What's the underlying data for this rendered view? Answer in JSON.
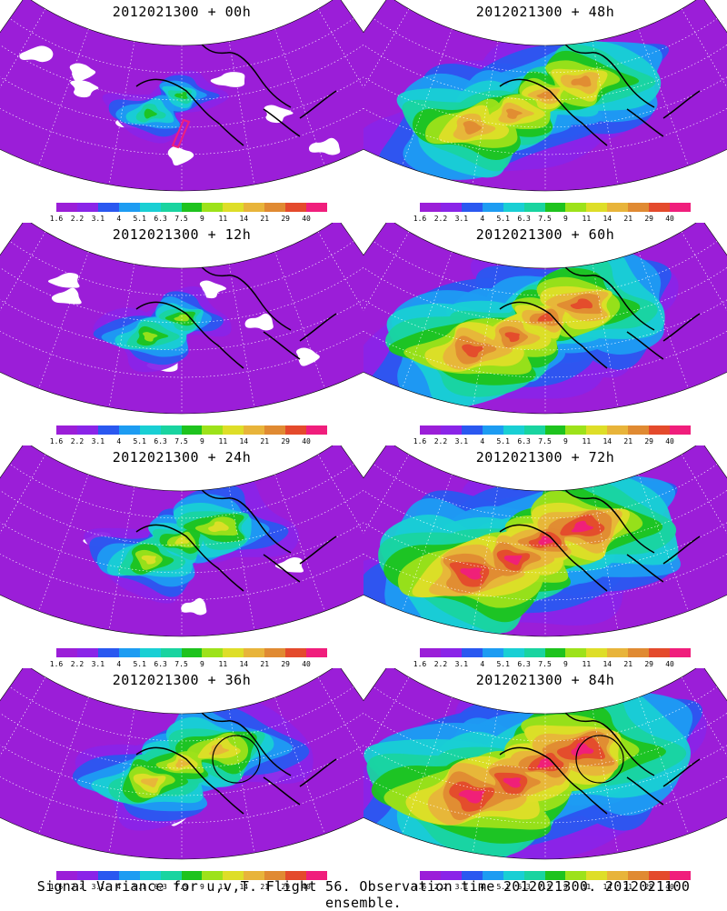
{
  "caption": "Signal Variance for u,v,T. Flight 56. Observation time 2012021300. 2012021100 ensemble.",
  "colorbar": {
    "colors": [
      "#9b1ed8",
      "#8a24e8",
      "#2a58f0",
      "#1d9cf2",
      "#19cfd4",
      "#19d4a0",
      "#1ec31e",
      "#9de21a",
      "#dede28",
      "#e8b43a",
      "#e08a32",
      "#e44a2c",
      "#f01e7c"
    ],
    "labels": [
      "1.6",
      "2.2",
      "3.1",
      "4",
      "5.1",
      "6.3",
      "7.5",
      "9",
      "11",
      "14",
      "21",
      "29",
      "40"
    ]
  },
  "panels": [
    {
      "title": "2012021300 + 00h",
      "level": 0,
      "circle": false,
      "track": true
    },
    {
      "title": "2012021300 + 48h",
      "level": 4,
      "circle": false,
      "track": false
    },
    {
      "title": "2012021300 + 12h",
      "level": 1,
      "circle": false,
      "track": false
    },
    {
      "title": "2012021300 + 60h",
      "level": 5,
      "circle": false,
      "track": false
    },
    {
      "title": "2012021300 + 24h",
      "level": 2,
      "circle": false,
      "track": false
    },
    {
      "title": "2012021300 + 72h",
      "level": 6,
      "circle": false,
      "track": false
    },
    {
      "title": "2012021300 + 36h",
      "level": 3,
      "circle": true,
      "track": false
    },
    {
      "title": "2012021300 + 84h",
      "level": 7,
      "circle": true,
      "track": false
    }
  ]
}
